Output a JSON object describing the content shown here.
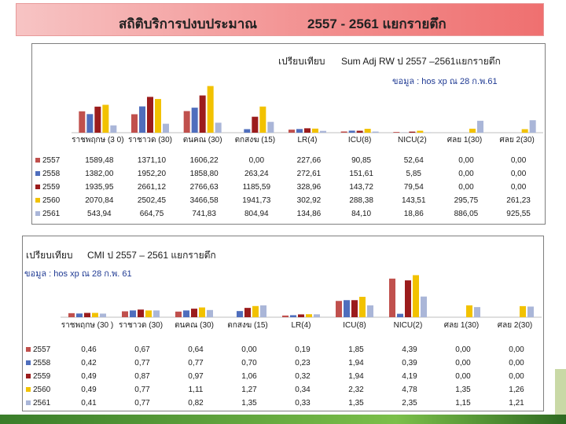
{
  "title": {
    "left": "สถิติบริการปงบประมาณ",
    "right": "2557 - 2561 แยกรายตึก"
  },
  "colors": {
    "2557": "#c0504d",
    "2558": "#4f6ebd",
    "2559": "#9b1c1c",
    "2560": "#f2c200",
    "2561": "#aab6d8"
  },
  "chart_data": [
    {
      "type": "bar",
      "heading": "เปรียบเทียบ",
      "heading2": "Sum Adj RW ป  2557 –2561แยกรายตึก",
      "source": "ขอมูล    : hos xp ณ 28 ก.พ.61",
      "categories": [
        "ราชพฤกษ (3 0)",
        "ราชาวด (30)",
        "ตนคณ   (30)",
        "ตกสงฆ   (15)",
        "LR(4)",
        "ICU(8)",
        "NICU(2)",
        "ศลย   1(30)",
        "ศลย    2(30)"
      ],
      "series": [
        {
          "name": "2557",
          "values": [
            "1589,48",
            "1371,10",
            "1606,22",
            "0,00",
            "227,66",
            "90,85",
            "52,64",
            "0,00",
            "0,00"
          ]
        },
        {
          "name": "2558",
          "values": [
            "1382,00",
            "1952,20",
            "1858,80",
            "263,24",
            "272,61",
            "151,61",
            "5,85",
            "0,00",
            "0,00"
          ]
        },
        {
          "name": "2559",
          "values": [
            "1935,95",
            "2661,12",
            "2766,63",
            "1185,59",
            "328,96",
            "143,72",
            "79,54",
            "0,00",
            "0,00"
          ]
        },
        {
          "name": "2560",
          "values": [
            "2070,84",
            "2502,45",
            "3466,58",
            "1941,73",
            "302,92",
            "288,38",
            "143,51",
            "295,75",
            "261,23"
          ]
        },
        {
          "name": "2561",
          "values": [
            "543,94",
            "664,75",
            "741,83",
            "804,94",
            "134,86",
            "84,10",
            "18,86",
            "886,05",
            "925,55"
          ]
        }
      ],
      "ylim": [
        0,
        3500
      ]
    },
    {
      "type": "bar",
      "heading": "เปรียบเทียบ",
      "heading2": "CMI ป   2557 – 2561 แยกรายตึก",
      "source": "ขอมูล    : hos xp ณ 28 ก.พ. 61",
      "categories": [
        "ราชพฤกษ (30 )",
        "ราชาวด (30)",
        "ตนคณ   (30)",
        "ตกสงฆ   (15)",
        "LR(4)",
        "ICU(8)",
        "NICU(2)",
        "ศลย   1(30)",
        "ศลย    2(30)"
      ],
      "series": [
        {
          "name": "2557",
          "values": [
            "0,46",
            "0,67",
            "0,64",
            "0,00",
            "0,19",
            "1,85",
            "4,39",
            "0,00",
            "0,00"
          ]
        },
        {
          "name": "2558",
          "values": [
            "0,42",
            "0,77",
            "0,77",
            "0,70",
            "0,23",
            "1,94",
            "0,39",
            "0,00",
            "0,00"
          ]
        },
        {
          "name": "2559",
          "values": [
            "0,49",
            "0,87",
            "0,97",
            "1,06",
            "0,32",
            "1,94",
            "4,19",
            "0,00",
            "0,00"
          ]
        },
        {
          "name": "2560",
          "values": [
            "0,49",
            "0,77",
            "1,11",
            "1,27",
            "0,34",
            "2,32",
            "4,78",
            "1,35",
            "1,26"
          ]
        },
        {
          "name": "2561",
          "values": [
            "0,41",
            "0,77",
            "0,82",
            "1,35",
            "0,33",
            "1,35",
            "2,35",
            "1,15",
            "1,21"
          ]
        }
      ],
      "ylim": [
        0,
        5
      ]
    }
  ]
}
